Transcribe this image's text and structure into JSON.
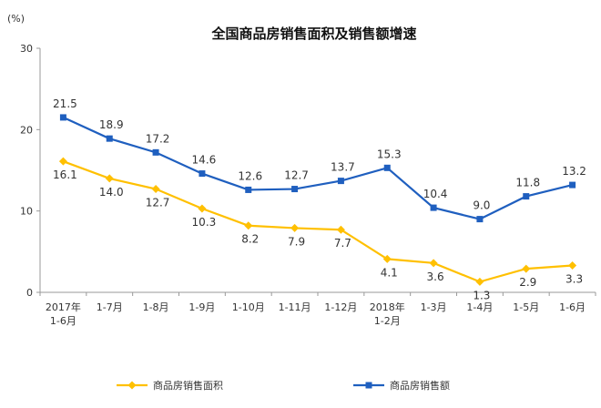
{
  "chart_data": {
    "type": "line",
    "title": "全国商品房销售面积及销售额增速",
    "ylabel": "(%)",
    "ylim": [
      0,
      30
    ],
    "yticks": [
      "0",
      "10",
      "20",
      "30"
    ],
    "grid": false,
    "legend_position": "bottom",
    "categories": [
      [
        "2017年",
        "1-6月"
      ],
      [
        "1-7月"
      ],
      [
        "1-8月"
      ],
      [
        "1-9月"
      ],
      [
        "1-10月"
      ],
      [
        "1-11月"
      ],
      [
        "1-12月"
      ],
      [
        "2018年",
        "1-2月"
      ],
      [
        "1-3月"
      ],
      [
        "1-4月"
      ],
      [
        "1-5月"
      ],
      [
        "1-6月"
      ]
    ],
    "series": [
      {
        "name": "商品房销售面积",
        "color": "#ffc000",
        "marker": "diamond",
        "values": [
          16.1,
          14.0,
          12.7,
          10.3,
          8.2,
          7.9,
          7.7,
          4.1,
          3.6,
          1.3,
          2.9,
          3.3
        ],
        "labels": [
          "16.1",
          "14.0",
          "12.7",
          "10.3",
          "8.2",
          "7.9",
          "7.7",
          "4.1",
          "3.6",
          "1.3",
          "2.9",
          "3.3"
        ]
      },
      {
        "name": "商品房销售额",
        "color": "#1f5fbf",
        "marker": "square",
        "values": [
          21.5,
          18.9,
          17.2,
          14.6,
          12.6,
          12.7,
          13.7,
          15.3,
          10.4,
          9.0,
          11.8,
          13.2
        ],
        "labels": [
          "21.5",
          "18.9",
          "17.2",
          "14.6",
          "12.6",
          "12.7",
          "13.7",
          "15.3",
          "10.4",
          "9.0",
          "11.8",
          "13.2"
        ]
      }
    ]
  }
}
